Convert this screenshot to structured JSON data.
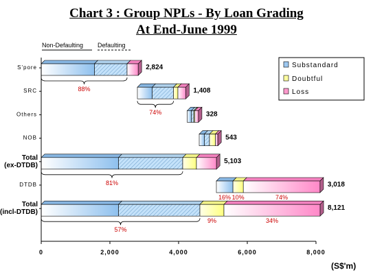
{
  "title_line1": "Chart 3 : Group NPLs - By Loan Grading",
  "title_line2": "At End-June 1999",
  "top_labels": {
    "non_defaulting": "Non-Defaulting",
    "defaulting": "Defaulting"
  },
  "units_label": "(S$'m)",
  "colors": {
    "non_defaulting_substandard": "#9ec8f0",
    "defaulting_substandard": "#b8dcf8",
    "doubtful": "#ffffa0",
    "loss": "#ff99cc",
    "percent_text": "#cc0000"
  },
  "chart_data": {
    "type": "bar",
    "orientation": "horizontal",
    "stacked": true,
    "title": "Chart 3 : Group NPLs - By Loan Grading At End-June 1999",
    "xlabel": "(S$'m)",
    "xlim": [
      0,
      8000
    ],
    "xticks": [
      "0",
      "2,000",
      "4,000",
      "6,000",
      "8,000"
    ],
    "xtick_values": [
      0,
      2000,
      4000,
      6000,
      8000
    ],
    "legend": [
      "Substandard",
      "Doubtful",
      "Loss"
    ],
    "legend_position": "right",
    "categories": [
      {
        "label": "S'pore",
        "bold": false,
        "offset": 0,
        "values": [
          1550,
          950,
          0,
          324
        ],
        "total": "2,824",
        "brace": "88%",
        "pcts": []
      },
      {
        "label": "SRC",
        "bold": false,
        "offset": 2800,
        "values": [
          430,
          620,
          130,
          228
        ],
        "total": "1,408",
        "brace": "74%",
        "pcts": []
      },
      {
        "label": "Others",
        "bold": false,
        "offset": 4250,
        "values": [
          120,
          70,
          30,
          108
        ],
        "total": "328",
        "brace": "",
        "pcts": []
      },
      {
        "label": "NOB",
        "bold": false,
        "offset": 4600,
        "values": [
          150,
          150,
          170,
          73
        ],
        "total": "543",
        "brace": "",
        "pcts": []
      },
      {
        "label": "Total (ex-DTDB)",
        "bold": true,
        "offset": 0,
        "values": [
          2250,
          1870,
          400,
          583
        ],
        "total": "5,103",
        "brace": "81%",
        "pcts": []
      },
      {
        "label": "DTDB",
        "bold": false,
        "offset": 5100,
        "values": [
          482,
          0,
          302,
          2234
        ],
        "total": "3,018",
        "brace": "",
        "pcts": [
          {
            "text": "16%",
            "seg": 0
          },
          {
            "text": "10%",
            "seg": 2
          },
          {
            "text": "74%",
            "seg": 3
          }
        ]
      },
      {
        "label": "Total (incl-DTDB)",
        "bold": true,
        "offset": 0,
        "values": [
          2250,
          2370,
          700,
          2801
        ],
        "total": "8,121",
        "brace": "57%",
        "pcts": [
          {
            "text": "9%",
            "seg": 2
          },
          {
            "text": "34%",
            "seg": 3
          }
        ]
      }
    ]
  }
}
